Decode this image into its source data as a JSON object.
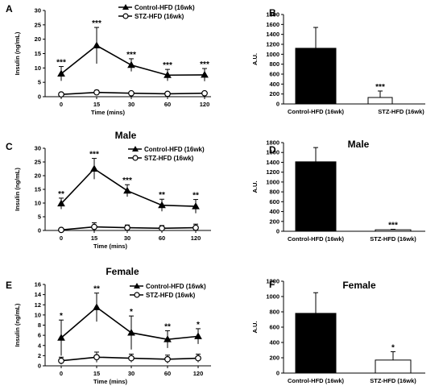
{
  "colors": {
    "axis": "#000000",
    "control_marker": "#000000",
    "stz_marker": "#ffffff",
    "control_bar": "#000000",
    "stz_bar": "#ffffff"
  },
  "legend": {
    "control": "Control-HFD (16wk)",
    "stz": "STZ-HFD (16wk)",
    "placement": "top-right",
    "control_marker": "filled triangle",
    "stz_marker": "open circle"
  },
  "chart_data": [
    {
      "panel": "A",
      "type": "line",
      "title": "",
      "xlabel": "Time (mins)",
      "ylabel": "Insulin (ng/mL)",
      "categories": [
        "0",
        "15",
        "30",
        "60",
        "120"
      ],
      "ylim": [
        0,
        30
      ],
      "yticks": [
        "0",
        "5",
        "10",
        "15",
        "20",
        "25",
        "30"
      ],
      "series": [
        {
          "name": "Control-HFD (16wk)",
          "values": [
            8.0,
            17.8,
            11.0,
            7.5,
            7.6
          ],
          "error": [
            2.5,
            6.3,
            2.2,
            2.0,
            2.2
          ]
        },
        {
          "name": "STZ-HFD (16wk)",
          "values": [
            0.8,
            1.5,
            1.2,
            1.0,
            1.2
          ],
          "error": [
            0.3,
            0.7,
            0.5,
            0.5,
            0.5
          ]
        }
      ],
      "annotations": [
        "***",
        "***",
        "***",
        "***",
        "***"
      ]
    },
    {
      "panel": "B",
      "type": "bar",
      "title": "",
      "xlabel": "",
      "ylabel": "A.U.",
      "categories": [
        "Control-HFD (16wk)",
        "STZ-HFD (16wk)"
      ],
      "values": [
        1120,
        130
      ],
      "error": [
        420,
        130
      ],
      "ylim": [
        0,
        1800
      ],
      "yticks": [
        "0",
        "200",
        "400",
        "600",
        "800",
        "1000",
        "1200",
        "1400",
        "1600",
        "1800"
      ],
      "annotations": [
        "",
        "***"
      ]
    },
    {
      "panel": "C",
      "type": "line",
      "title": "Male",
      "xlabel": "Time (mins)",
      "ylabel": "Insulin (ng/mL)",
      "categories": [
        "0",
        "15",
        "30",
        "60",
        "120"
      ],
      "ylim": [
        0,
        30
      ],
      "yticks": [
        "0",
        "5",
        "10",
        "15",
        "20",
        "25",
        "30"
      ],
      "series": [
        {
          "name": "Control-HFD (16wk)",
          "values": [
            9.8,
            22.5,
            14.5,
            9.2,
            8.8
          ],
          "error": [
            2.0,
            3.8,
            2.2,
            2.2,
            2.5
          ]
        },
        {
          "name": "STZ-HFD (16wk)",
          "values": [
            0.2,
            1.3,
            1.0,
            0.8,
            1.0
          ],
          "error": [
            0.3,
            1.5,
            1.0,
            1.0,
            1.3
          ]
        }
      ],
      "annotations": [
        "**",
        "***",
        "***",
        "**",
        "**"
      ]
    },
    {
      "panel": "D",
      "type": "bar",
      "title": "Male",
      "xlabel": "",
      "ylabel": "A.U.",
      "categories": [
        "Control-HFD (16wk)",
        "STZ-HFD (16wk)"
      ],
      "values": [
        1410,
        30
      ],
      "error": [
        290,
        10
      ],
      "ylim": [
        0,
        1800
      ],
      "yticks": [
        "0",
        "200",
        "400",
        "600",
        "800",
        "1000",
        "1200",
        "1400",
        "1600",
        "1800"
      ],
      "annotations": [
        "",
        "***"
      ]
    },
    {
      "panel": "E",
      "type": "line",
      "title": "Female",
      "xlabel": "Time (mins)",
      "ylabel": "Insulin (ng/mL)",
      "categories": [
        "0",
        "15",
        "30",
        "60",
        "120"
      ],
      "ylim": [
        0,
        16
      ],
      "yticks": [
        "0",
        "2",
        "4",
        "6",
        "8",
        "10",
        "12",
        "14",
        "16"
      ],
      "series": [
        {
          "name": "Control-HFD (16wk)",
          "values": [
            5.5,
            11.5,
            6.5,
            5.2,
            5.8
          ],
          "error": [
            3.5,
            2.8,
            3.3,
            1.7,
            1.5
          ]
        },
        {
          "name": "STZ-HFD (16wk)",
          "values": [
            1.0,
            1.7,
            1.5,
            1.3,
            1.5
          ],
          "error": [
            0.7,
            1.0,
            0.8,
            0.8,
            0.8
          ]
        }
      ],
      "annotations": [
        "*",
        "**",
        "*",
        "**",
        "*"
      ]
    },
    {
      "panel": "F",
      "type": "bar",
      "title": "Female",
      "xlabel": "",
      "ylabel": "A.U.",
      "categories": [
        "Control-HFD (16wk)",
        "STZ-HFD (16wk)"
      ],
      "values": [
        780,
        170
      ],
      "error": [
        270,
        110
      ],
      "ylim": [
        0,
        1200
      ],
      "yticks": [
        "0",
        "200",
        "400",
        "600",
        "800",
        "1000",
        "1200"
      ],
      "annotations": [
        "",
        "*"
      ]
    }
  ]
}
